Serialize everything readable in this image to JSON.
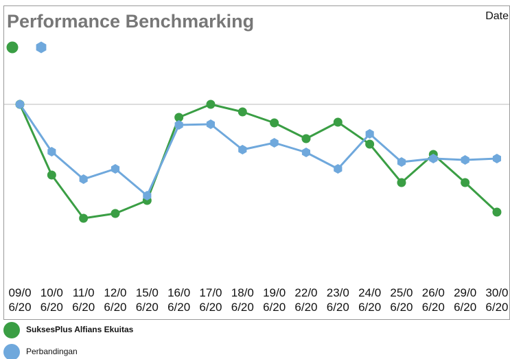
{
  "chart_data": {
    "type": "line",
    "title": "Performance Benchmarking",
    "date_label": "Date",
    "categories": [
      "09/06/20",
      "10/06/20",
      "11/06/20",
      "12/06/20",
      "15/06/20",
      "16/06/20",
      "17/06/20",
      "18/06/20",
      "19/06/20",
      "22/06/20",
      "23/06/20",
      "24/06/20",
      "25/06/20",
      "26/06/20",
      "29/06/20",
      "30/06/20"
    ],
    "series": [
      {
        "name": "SuksesPlus Alfians Ekuitas",
        "color": "#3a9e44",
        "marker": "circle",
        "values": [
          0,
          -5.15,
          -8.3,
          -7.95,
          -7,
          -0.95,
          0,
          -0.55,
          -1.35,
          -2.5,
          -1.3,
          -2.9,
          -5.7,
          -3.65,
          -5.7,
          -7.85
        ]
      },
      {
        "name": "Perbandingan",
        "color": "#6fa8dc",
        "marker": "hexagon",
        "values": [
          0,
          -3.45,
          -5.45,
          -4.7,
          -6.65,
          -1.5,
          -1.45,
          -3.3,
          -2.8,
          -3.5,
          -4.7,
          -2.15,
          -4.2,
          -3.95,
          -4.05,
          -3.95
        ]
      }
    ],
    "ylim": [
      -12.5,
      7
    ],
    "yticks": [
      0
    ],
    "ytick_labels": false,
    "grid": true
  }
}
